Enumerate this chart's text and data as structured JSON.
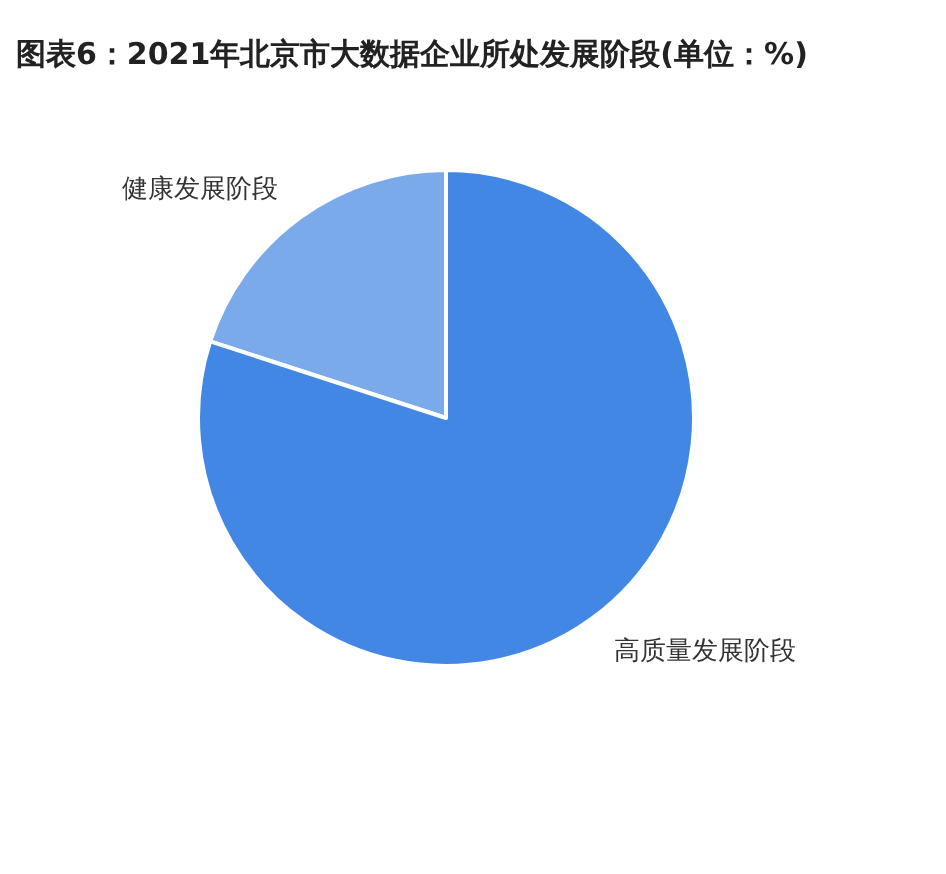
{
  "chart_data": {
    "type": "pie",
    "title": "图表6：2021年北京市大数据企业所处发展阶段(单位：%)",
    "categories": [
      "健康发展阶段",
      "高质量发展阶段"
    ],
    "values": [
      20,
      80
    ],
    "colors": [
      "#7aaaea",
      "#4287e3"
    ],
    "legend": false
  }
}
